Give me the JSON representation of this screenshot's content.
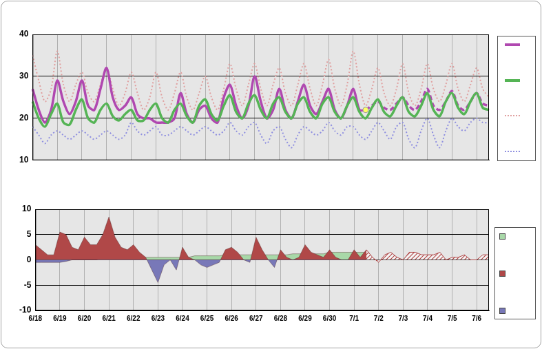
{
  "chart_data": [
    {
      "type": "line",
      "categories": [
        "6/18",
        null,
        null,
        null,
        "6/19",
        null,
        null,
        null,
        "6/20",
        null,
        null,
        null,
        "6/21",
        null,
        null,
        null,
        "6/22",
        null,
        null,
        null,
        "6/23",
        null,
        null,
        null,
        "6/24",
        null,
        null,
        null,
        "6/25",
        null,
        null,
        null,
        "6/26",
        null,
        null,
        null,
        "6/27",
        null,
        null,
        null,
        "6/28",
        null,
        null,
        null,
        "6/29",
        null,
        null,
        null,
        "6/30",
        null,
        null,
        null,
        "7/1",
        null,
        null,
        null,
        "7/2",
        null,
        null,
        null,
        "7/3",
        null,
        null,
        null,
        "7/4",
        null,
        null,
        null,
        "7/5",
        null,
        null,
        null,
        "7/6",
        null,
        null
      ],
      "ylim": [
        10,
        40
      ],
      "yticks": [
        10,
        20,
        30,
        40
      ],
      "grid": true,
      "legend": "right",
      "tick_labels": "y",
      "series": [
        {
          "color": "#e0a0a0",
          "line_style": "dotted",
          "marker": "none",
          "values": [
            35,
            29,
            24,
            27,
            36,
            28,
            24,
            28,
            31,
            26,
            24,
            28,
            32,
            27,
            23,
            26,
            31,
            26,
            22,
            25,
            31,
            25,
            22,
            26,
            31,
            25,
            22,
            26,
            30,
            25,
            22,
            27,
            33,
            27,
            23,
            28,
            33,
            27,
            23,
            28,
            32,
            26,
            23,
            28,
            33,
            27,
            23,
            28,
            34,
            27,
            23,
            28,
            36,
            28,
            23,
            27,
            32,
            26,
            23,
            27,
            33,
            26,
            23,
            27,
            33,
            27,
            24,
            28,
            33,
            27,
            24,
            28,
            32,
            27,
            25
          ]
        },
        {
          "color": "#9090e0",
          "line_style": "dotted",
          "marker": "none",
          "values": [
            18,
            16,
            14,
            16,
            17,
            16,
            15,
            16,
            17,
            16,
            15,
            16,
            17,
            16,
            15,
            16,
            19,
            17,
            16,
            17,
            18,
            16,
            16,
            17,
            18,
            17,
            16,
            17,
            18,
            17,
            16,
            17,
            19,
            17,
            16,
            18,
            19,
            16,
            14,
            17,
            18,
            15,
            13,
            16,
            18,
            17,
            16,
            17,
            19,
            17,
            16,
            18,
            18,
            16,
            15,
            17,
            19,
            17,
            15,
            18,
            19,
            15,
            13,
            17,
            20,
            16,
            13,
            17,
            20,
            18,
            17,
            19,
            20,
            19,
            19
          ]
        },
        {
          "color": "#b048b0",
          "line_style": "solid",
          "marker": "none",
          "values": [
            27,
            22,
            19,
            22,
            29,
            24,
            21,
            24,
            29,
            23,
            22,
            27,
            32,
            25,
            22,
            23,
            25,
            21,
            20,
            20,
            19,
            19,
            19,
            20,
            26,
            21,
            19,
            22,
            23,
            20,
            19,
            25,
            28,
            23,
            20,
            23,
            30,
            24,
            20,
            22,
            27,
            22,
            20,
            24,
            28,
            23,
            21,
            24,
            27,
            22,
            20,
            23,
            27,
            22,
            22,
            null,
            null,
            null,
            null,
            null,
            null,
            null,
            null,
            null,
            null,
            null,
            null,
            null,
            null,
            null,
            null,
            null,
            null,
            null,
            null
          ]
        },
        {
          "color": "#b048b0",
          "line_style": "dashed",
          "marker": "none",
          "values": [
            null,
            null,
            null,
            null,
            null,
            null,
            null,
            null,
            null,
            null,
            null,
            null,
            null,
            null,
            null,
            null,
            null,
            null,
            null,
            null,
            null,
            null,
            null,
            null,
            null,
            null,
            null,
            null,
            null,
            null,
            null,
            null,
            null,
            null,
            null,
            null,
            null,
            null,
            null,
            null,
            null,
            null,
            null,
            null,
            null,
            null,
            null,
            null,
            null,
            null,
            null,
            null,
            null,
            null,
            22,
            23,
            24,
            22.5,
            22,
            23.5,
            25,
            23,
            22,
            24,
            27,
            23,
            22,
            24,
            26.5,
            23,
            22,
            24,
            26,
            23.5,
            23
          ]
        },
        {
          "color": "#55b455",
          "line_style": "solid",
          "marker": "none",
          "values": [
            24,
            20,
            18,
            21,
            23.5,
            19,
            18.5,
            22,
            24.5,
            20,
            19,
            22,
            23.5,
            20.5,
            19.5,
            21,
            22,
            19.5,
            19.5,
            22,
            23.5,
            20,
            19,
            22,
            23.5,
            20.5,
            19,
            23,
            24.5,
            21,
            19.5,
            23,
            25.5,
            21.5,
            20,
            23.5,
            25.5,
            22,
            20,
            23.5,
            25,
            21.5,
            20,
            23.5,
            25,
            21.5,
            20,
            23.5,
            25,
            21.5,
            20,
            23,
            25,
            21.5,
            20,
            22.5,
            24.5,
            21.5,
            20.5,
            23,
            25,
            21.5,
            20.5,
            23,
            26,
            22,
            20.5,
            24,
            26,
            22.5,
            21,
            24,
            26,
            22.5,
            22
          ]
        },
        {
          "color": "#ffff66",
          "line_style": "none",
          "marker": "circle",
          "values": [
            null,
            null,
            null,
            null,
            null,
            null,
            null,
            null,
            null,
            null,
            null,
            null,
            null,
            null,
            null,
            null,
            null,
            null,
            null,
            null,
            null,
            null,
            null,
            null,
            null,
            null,
            null,
            null,
            null,
            null,
            null,
            null,
            null,
            null,
            null,
            null,
            null,
            null,
            null,
            null,
            null,
            null,
            null,
            null,
            null,
            null,
            null,
            null,
            null,
            null,
            null,
            null,
            null,
            null,
            22,
            null,
            null,
            null,
            null,
            null,
            null,
            null,
            null,
            null,
            null,
            null,
            null,
            null,
            null,
            null,
            null,
            null,
            null,
            null,
            null
          ]
        }
      ]
    },
    {
      "type": "area",
      "categories": [
        "6/18",
        null,
        null,
        null,
        "6/19",
        null,
        null,
        null,
        "6/20",
        null,
        null,
        null,
        "6/21",
        null,
        null,
        null,
        "6/22",
        null,
        null,
        null,
        "6/23",
        null,
        null,
        null,
        "6/24",
        null,
        null,
        null,
        "6/25",
        null,
        null,
        null,
        "6/26",
        null,
        null,
        null,
        "6/27",
        null,
        null,
        null,
        "6/28",
        null,
        null,
        null,
        "6/29",
        null,
        null,
        null,
        "6/30",
        null,
        null,
        null,
        "7/1",
        null,
        null,
        null,
        "7/2",
        null,
        null,
        null,
        "7/3",
        null,
        null,
        null,
        "7/4",
        null,
        null,
        null,
        "7/5",
        null,
        null,
        null,
        "7/6",
        null,
        null
      ],
      "ylim": [
        -10,
        10
      ],
      "yticks": [
        -10,
        -5,
        0,
        5,
        10
      ],
      "grid": true,
      "legend": "right",
      "series": [
        {
          "color": "#a8d8a8",
          "line_style": "solid",
          "values": [
            -0.5,
            -0.5,
            -0.5,
            -0.5,
            -0.5,
            -0.3,
            0,
            0,
            0,
            0,
            0,
            0.3,
            0.3,
            0.5,
            0.5,
            0.5,
            0.5,
            0.5,
            0.5,
            0.5,
            0.5,
            0.5,
            0.5,
            0.5,
            0.5,
            0.5,
            0.8,
            0.8,
            0.8,
            0.8,
            0.8,
            1,
            1,
            1,
            1,
            1,
            1,
            1,
            1,
            1,
            1,
            1,
            1.2,
            1.2,
            1.2,
            1.2,
            1.2,
            1.2,
            1.5,
            1.5,
            1.5,
            1.5,
            1.5,
            1.5,
            1.5,
            null,
            null,
            null,
            null,
            null,
            null,
            null,
            null,
            null,
            null,
            null,
            null,
            null,
            null,
            null,
            null,
            null,
            null,
            null,
            null
          ]
        },
        {
          "color": "#b04848",
          "line_style": "solid",
          "values": [
            3,
            2,
            1,
            1,
            5.5,
            5,
            2.5,
            2,
            4.5,
            3,
            3,
            5,
            8.5,
            4.5,
            2.5,
            2,
            3,
            1.5,
            0.5,
            -2,
            -4.5,
            -1,
            0,
            -2,
            2.5,
            0.5,
            0,
            -1,
            -1.5,
            -1,
            -0.5,
            2,
            2.5,
            1.5,
            0,
            -0.5,
            4.5,
            2,
            0,
            -1.5,
            2,
            0.5,
            0,
            0.5,
            3,
            1.5,
            1,
            0.5,
            2,
            0.5,
            0,
            0,
            2,
            0.5,
            2,
            null,
            null,
            null,
            null,
            null,
            null,
            null,
            null,
            null,
            null,
            null,
            null,
            null,
            null,
            null,
            null,
            null,
            null,
            null,
            null
          ]
        },
        {
          "color": "#b04848",
          "line_style": "hatched",
          "values": [
            null,
            null,
            null,
            null,
            null,
            null,
            null,
            null,
            null,
            null,
            null,
            null,
            null,
            null,
            null,
            null,
            null,
            null,
            null,
            null,
            null,
            null,
            null,
            null,
            null,
            null,
            null,
            null,
            null,
            null,
            null,
            null,
            null,
            null,
            null,
            null,
            null,
            null,
            null,
            null,
            null,
            null,
            null,
            null,
            null,
            null,
            null,
            null,
            null,
            null,
            null,
            null,
            null,
            null,
            2,
            0.5,
            -0.5,
            1,
            1.5,
            0.5,
            0,
            1.5,
            1.5,
            1,
            1,
            1,
            1.5,
            0,
            0.5,
            0.5,
            1,
            0,
            0,
            1,
            1
          ]
        }
      ]
    }
  ]
}
